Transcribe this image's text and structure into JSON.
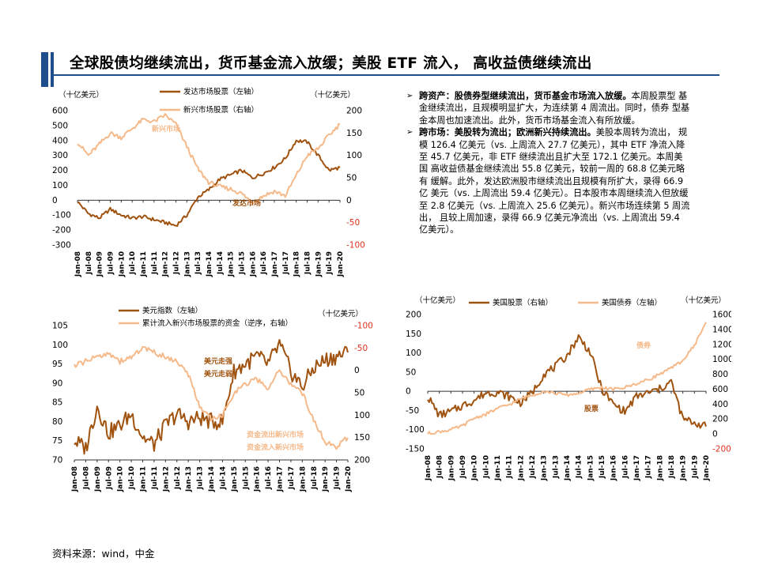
{
  "header": {
    "title": "全球股债均继续流出，货币基金流入放缓；美股  ETF 流入， 高收益债继续流出"
  },
  "bullets": [
    {
      "head": "跨资产：股债券型继续流出，货币基金市场流入放缓。",
      "body": "本周股票型 基金继续流出，且规模明显扩大，为连续第  4 周流出。同时，债券 型基金本周也加速流出。此外，货币市场基金流入有所放缓。"
    },
    {
      "head": "跨市场：美股转为流出；欧洲新兴持续流出。",
      "body": "美股本周转为流出， 规模 126.4 亿美元（vs. 上周流入 27.7 亿美元），其中 ETF 净流入降 至 45.7 亿美元，非 ETF 继续流出且扩大至 172.1 亿美元。本周美国  高收益债基金继续流出 55.8 亿美元，较前一周的  68.8 亿美元略有  缓解。此外，发达欧洲股市继续流出且规模有所扩大，录得  66.9 亿 美元（vs. 上周流出 59.4 亿美元）。日本股市本周继续流入但放缓至 2.8 亿美元（vs. 上周流入 25.6 亿美元）。新兴市场连续第 5 周流出， 且较上周加速，录得 66.9 亿美元净流出（vs. 上周流出 59.4 亿美元）。"
    }
  ],
  "source": "资料来源：wind，中金",
  "colors": {
    "brown": "#a0520f",
    "peach": "#f5b98a",
    "blue": "#1f4e8c"
  },
  "chart_data": [
    {
      "type": "line",
      "x": [
        "Jan-08",
        "Jul-08",
        "Jan-09",
        "Jul-09",
        "Jan-10",
        "Jul-10",
        "Jan-11",
        "Jul-11",
        "Jan-12",
        "Jul-12",
        "Jan-13",
        "Jul-13",
        "Jan-14",
        "Jul-14",
        "Jan-15",
        "Jul-15",
        "Jan-16",
        "Jul-16",
        "Jan-17",
        "Jul-17",
        "Jan-18",
        "Jul-18",
        "Jan-19",
        "Jul-19",
        "Jan-20"
      ],
      "series": [
        {
          "name": "发达市场股票（左轴）",
          "axis": "left",
          "values": [
            -10,
            -90,
            -120,
            -60,
            -100,
            -120,
            -110,
            -130,
            -150,
            -170,
            -100,
            20,
            70,
            140,
            170,
            200,
            150,
            180,
            220,
            280,
            400,
            390,
            300,
            200,
            220
          ]
        },
        {
          "name": "新兴市场股票（右轴）",
          "axis": "right",
          "values": [
            130,
            100,
            125,
            150,
            140,
            160,
            180,
            175,
            190,
            170,
            120,
            70,
            40,
            30,
            25,
            15,
            -5,
            10,
            20,
            10,
            55,
            100,
            115,
            145,
            170
          ]
        }
      ],
      "left_unit": "（十亿美元）",
      "right_unit": "（十亿美元）",
      "ylim_left": [
        -300,
        600
      ],
      "ylim_right": [
        -100,
        200
      ],
      "left_ticks": [
        "600",
        "500",
        "400",
        "300",
        "200",
        "100",
        "0",
        "-100",
        "-200",
        "-300"
      ],
      "right_ticks": [
        "200",
        "150",
        "100",
        "50",
        "0",
        "-50",
        "-100"
      ],
      "annotations": [
        "新兴市场",
        "发达市场"
      ]
    },
    {
      "type": "line",
      "x": [
        "Jan-08",
        "Jul-08",
        "Jan-09",
        "Jul-09",
        "Jan-10",
        "Jul-10",
        "Jan-11",
        "Jul-11",
        "Jan-12",
        "Jul-12",
        "Jan-13",
        "Jul-13",
        "Jan-14",
        "Jul-14",
        "Jan-15",
        "Jul-15",
        "Jan-16",
        "Jul-16",
        "Jan-17",
        "Jul-17",
        "Jan-18",
        "Jul-18",
        "Jan-19",
        "Jul-19",
        "Jan-20"
      ],
      "series": [
        {
          "name": "美元指数（左轴）",
          "axis": "left",
          "values": [
            75,
            73,
            84,
            77,
            79,
            82,
            76,
            74,
            79,
            82,
            80,
            81,
            80,
            80,
            93,
            95,
            97,
            95,
            100,
            93,
            89,
            94,
            96,
            97,
            98
          ]
        },
        {
          "name": "累计流入新兴市场股票的资金（逆序，右轴）",
          "axis": "right",
          "values": [
            -10,
            -20,
            -30,
            -40,
            -20,
            -30,
            -50,
            -40,
            -30,
            -20,
            10,
            80,
            110,
            100,
            50,
            30,
            20,
            40,
            0,
            30,
            50,
            110,
            160,
            170,
            150
          ]
        }
      ],
      "left_unit": "",
      "right_unit": "（十亿美元）",
      "ylim_left": [
        70,
        105
      ],
      "ylim_right": [
        -100,
        200
      ],
      "right_inverted": true,
      "left_ticks": [
        "105",
        "100",
        "95",
        "90",
        "85",
        "80",
        "75",
        "70"
      ],
      "right_ticks": [
        "-100",
        "-50",
        "0",
        "50",
        "100",
        "150",
        "200"
      ],
      "annotations": [
        "美元走强",
        "美元走弱",
        "资金流出新兴市场",
        "资金流入新兴市场"
      ]
    },
    {
      "type": "line",
      "x": [
        "Jan-08",
        "Jul-08",
        "Jan-09",
        "Jul-09",
        "Jan-10",
        "Jul-10",
        "Jan-11",
        "Jul-11",
        "Jan-12",
        "Jul-12",
        "Jan-13",
        "Jul-13",
        "Jan-14",
        "Jul-14",
        "Jan-15",
        "Jul-15",
        "Jan-16",
        "Jul-16",
        "Jan-17",
        "Jul-17",
        "Jan-18",
        "Jul-18",
        "Jan-19",
        "Jul-19",
        "Jan-20"
      ],
      "series": [
        {
          "name": "美国股票（右轴）",
          "axis": "right",
          "values": [
            500,
            250,
            300,
            380,
            450,
            550,
            560,
            500,
            420,
            550,
            800,
            900,
            1050,
            1300,
            1100,
            600,
            400,
            300,
            500,
            550,
            600,
            700,
            200,
            150,
            100
          ]
        },
        {
          "name": "美国债券（左轴）",
          "axis": "left",
          "values": [
            -110,
            -105,
            -100,
            -90,
            -70,
            -60,
            -45,
            -35,
            -20,
            -10,
            0,
            -5,
            -10,
            -5,
            5,
            10,
            5,
            10,
            20,
            30,
            45,
            60,
            80,
            120,
            180
          ]
        }
      ],
      "left_unit": "（十亿美元）",
      "right_unit": "（十亿美元）",
      "ylim_left": [
        -150,
        200
      ],
      "ylim_right": [
        -200,
        1600
      ],
      "left_ticks": [
        "200",
        "150",
        "100",
        "50",
        "0",
        "-50",
        "-100",
        "-150"
      ],
      "right_ticks": [
        "1600",
        "1400",
        "1200",
        "1000",
        "800",
        "600",
        "400",
        "200",
        "0",
        "-200"
      ],
      "annotations": [
        "债券",
        "股票"
      ]
    }
  ]
}
